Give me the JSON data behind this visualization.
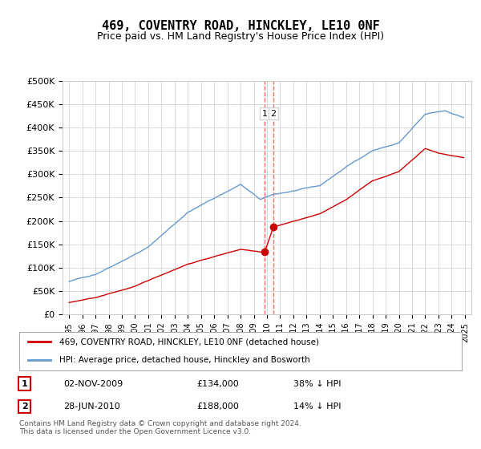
{
  "title": "469, COVENTRY ROAD, HINCKLEY, LE10 0NF",
  "subtitle": "Price paid vs. HM Land Registry's House Price Index (HPI)",
  "legend_line1": "469, COVENTRY ROAD, HINCKLEY, LE10 0NF (detached house)",
  "legend_line2": "HPI: Average price, detached house, Hinckley and Bosworth",
  "footnote": "Contains HM Land Registry data © Crown copyright and database right 2024.\nThis data is licensed under the Open Government Licence v3.0.",
  "transaction1_label": "1",
  "transaction1_date": "02-NOV-2009",
  "transaction1_price": "£134,000",
  "transaction1_hpi": "38% ↓ HPI",
  "transaction1_x": 2009.83,
  "transaction1_y": 134000,
  "transaction2_label": "2",
  "transaction2_date": "28-JUN-2010",
  "transaction2_price": "£188,000",
  "transaction2_hpi": "14% ↓ HPI",
  "transaction2_x": 2010.48,
  "transaction2_y": 188000,
  "vline_x1": 2009.83,
  "vline_x2": 2010.48,
  "red_line_color": "#cc0000",
  "blue_line_color": "#6699cc",
  "vline_color": "#ff6666",
  "dot_color": "#cc0000",
  "background_color": "#ffffff",
  "grid_color": "#cccccc",
  "ylim": [
    0,
    500000
  ],
  "xlim_start": 1994.5,
  "xlim_end": 2025.5,
  "yticks": [
    0,
    50000,
    100000,
    150000,
    200000,
    250000,
    300000,
    350000,
    400000,
    450000,
    500000
  ]
}
